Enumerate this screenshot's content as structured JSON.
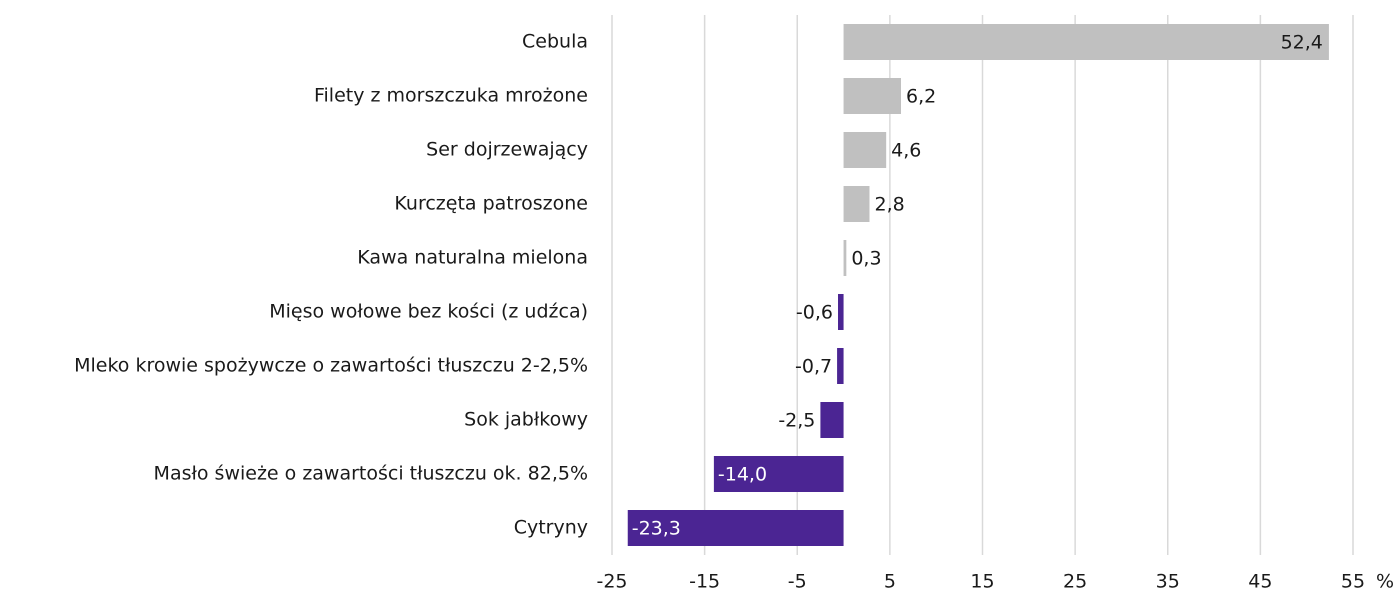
{
  "chart_data": {
    "type": "hbar",
    "categories": [
      "Cebula",
      "Filety z morszczuka mrożone",
      "Ser dojrzewający",
      "Kurczęta patroszone",
      "Kawa naturalna mielona",
      "Mięso wołowe bez kości (z udźca)",
      "Mleko krowie spożywcze o zawartości tłuszczu 2-2,5%",
      "Sok jabłkowy",
      "Masło świeże o zawartości tłuszczu ok. 82,5%",
      "Cytryny"
    ],
    "values": [
      52.4,
      6.2,
      4.6,
      2.8,
      0.3,
      -0.6,
      -0.7,
      -2.5,
      -14.0,
      -23.3
    ],
    "value_labels": [
      "52,4",
      "6,2",
      "4,6",
      "2,8",
      "0,3",
      "-0,6",
      "-0,7",
      "-2,5",
      "-14,0",
      "-23,3"
    ],
    "positive_color": "#c0c0c0",
    "negative_color": "#4b2593",
    "xlim": [
      -25,
      55
    ],
    "xticks": [
      -25,
      -15,
      -5,
      5,
      15,
      25,
      35,
      45,
      55
    ],
    "unit": "%",
    "grid": true
  }
}
